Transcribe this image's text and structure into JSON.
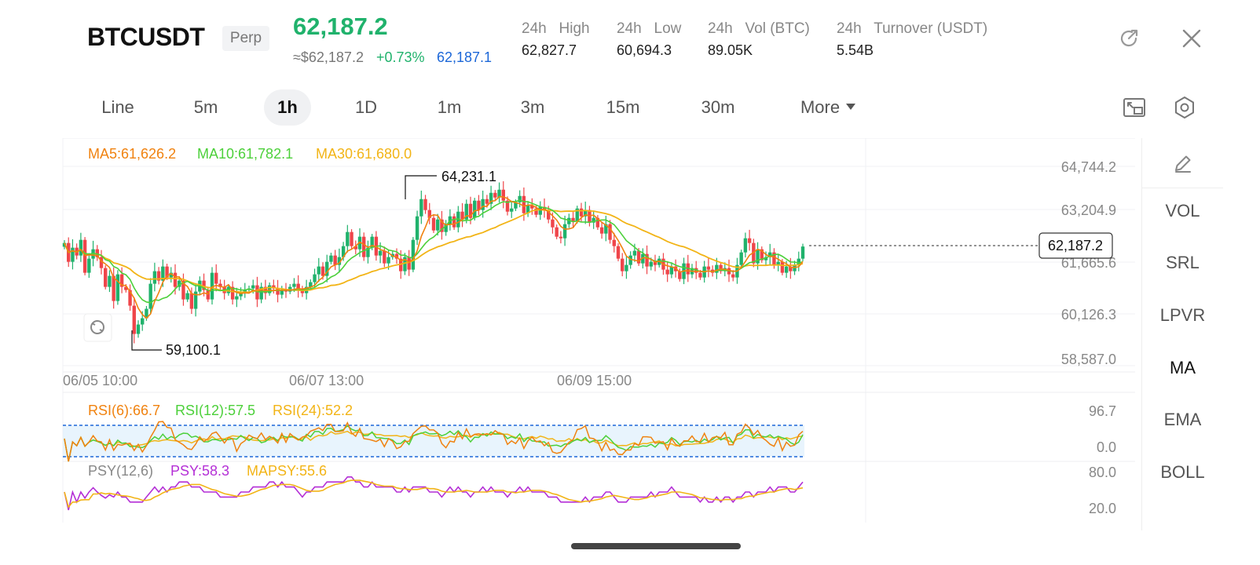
{
  "header": {
    "symbol": "BTCUSDT",
    "badge": "Perp",
    "last_price": "62,187.2",
    "fiat_price": "≈$62,187.2",
    "change_pct": "+0.73%",
    "mark_price": "62,187.1",
    "stats": [
      {
        "label": "24h   High",
        "value": "62,827.7"
      },
      {
        "label": "24h   Low",
        "value": "60,694.3"
      },
      {
        "label": "24h   Vol (BTC)",
        "value": "89.05K"
      },
      {
        "label": "24h   Turnover (USDT)",
        "value": "5.54B"
      }
    ],
    "icons": [
      "share-icon",
      "close-icon"
    ]
  },
  "tabs": {
    "items": [
      "Line",
      "5m",
      "1h",
      "1D",
      "1m",
      "3m",
      "15m",
      "30m"
    ],
    "active": "1h",
    "more": "More"
  },
  "toolbar_icons": [
    "fullscreen-icon",
    "settings-icon"
  ],
  "colors": {
    "up": "#20b26c",
    "down": "#ef454a",
    "ma5": "#f0820f",
    "ma10": "#4cd03a",
    "ma30": "#f2b416",
    "psy": "#b42fd6",
    "mark": "#1c67d8"
  },
  "chart_data": {
    "type": "candlestick",
    "timeframe": "1h",
    "ma_legend": {
      "ma5": "MA5:61,626.2",
      "ma10": "MA10:61,782.1",
      "ma30": "MA30:61,680.0"
    },
    "y_ticks": [
      "64,744.2",
      "63,204.9",
      "61,665.6",
      "60,126.3",
      "58,587.0"
    ],
    "ylim": [
      58587.0,
      64744.2
    ],
    "x_ticks": [
      "06/05 10:00",
      "06/07 13:00",
      "06/09 15:00"
    ],
    "high_label": "64,231.1",
    "low_label": "59,100.1",
    "current_price": "62,187.2",
    "closes": [
      62300,
      61700,
      62150,
      61900,
      62400,
      61350,
      61800,
      62100,
      61850,
      61500,
      60900,
      61250,
      60450,
      61300,
      60900,
      60800,
      60300,
      59400,
      59700,
      59900,
      60200,
      61000,
      61400,
      61100,
      61550,
      61200,
      61350,
      60900,
      61100,
      60500,
      60700,
      60200,
      60750,
      61100,
      60800,
      60500,
      61350,
      61000,
      60900,
      60700,
      60900,
      60500,
      60600,
      60750,
      60800,
      60850,
      60950,
      60500,
      60900,
      60700,
      60950,
      60850,
      60650,
      60800,
      60750,
      60900,
      61000,
      60800,
      60700,
      60900,
      61050,
      61300,
      61550,
      61250,
      61700,
      61900,
      61600,
      61850,
      62200,
      62650,
      62200,
      62100,
      62500,
      61850,
      62150,
      62500,
      61900,
      62050,
      61650,
      61850,
      61950,
      61800,
      61400,
      61850,
      61450,
      62400,
      63150,
      63700,
      63350,
      63100,
      62700,
      63050,
      62650,
      62900,
      63150,
      62800,
      63300,
      63050,
      63550,
      63100,
      63650,
      63350,
      63700,
      63550,
      63900,
      63750,
      64000,
      63650,
      63300,
      63400,
      63600,
      63800,
      63250,
      63500,
      63400,
      63200,
      63450,
      63350,
      63050,
      62800,
      62500,
      62450,
      62900,
      63100,
      63000,
      63400,
      63150,
      63350,
      62950,
      63100,
      62800,
      62600,
      62900,
      62400,
      62200,
      61800,
      61400,
      61600,
      61900,
      62050,
      61650,
      61950,
      61550,
      61700,
      61600,
      61800,
      61450,
      61300,
      61550,
      61400,
      61150,
      61650,
      61300,
      61500,
      61350,
      61200,
      61550,
      61450,
      61350,
      61600,
      61400,
      61500,
      61300,
      61200,
      61600,
      62000,
      62450,
      62300,
      61650,
      62100,
      61750,
      61850,
      62000,
      61600,
      61700,
      61350,
      61550,
      61400,
      61600,
      61800,
      62187.2
    ],
    "rsi": {
      "legend": [
        "RSI(6):66.7",
        "RSI(12):57.5",
        "RSI(24):52.2"
      ],
      "y_ticks": [
        "96.7",
        "0.0"
      ],
      "ylim": [
        0,
        96.7
      ],
      "bands": [
        70,
        30
      ]
    },
    "psy": {
      "legend": [
        "PSY(12,6)",
        "PSY:58.3",
        "MAPSY:55.6"
      ],
      "y_ticks": [
        "80.0",
        "20.0"
      ],
      "ylim": [
        20,
        80
      ]
    }
  },
  "sidebar": {
    "items": [
      "VOL",
      "SRL",
      "LPVR",
      "MA",
      "EMA",
      "BOLL"
    ],
    "active": "MA"
  }
}
